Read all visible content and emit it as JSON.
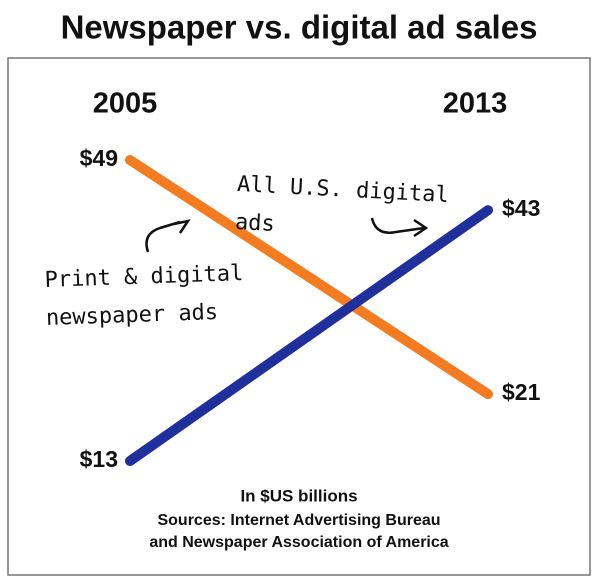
{
  "chart_data": {
    "type": "slope",
    "title": "Newspaper vs. digital ad sales",
    "categories": [
      "2005",
      "2013"
    ],
    "series": [
      {
        "name": "Print & digital newspaper ads",
        "color": "#f47b20",
        "values": [
          49,
          21
        ],
        "value_labels": [
          "$49",
          "$21"
        ]
      },
      {
        "name": "All U.S. digital ads",
        "color": "#1f2f9c",
        "values": [
          13,
          43
        ],
        "value_labels": [
          "$13",
          "$43"
        ]
      }
    ],
    "note": "In $US billions",
    "sources": [
      "Sources: Internet Advertising Bureau",
      "and Newspaper Association of America"
    ]
  }
}
